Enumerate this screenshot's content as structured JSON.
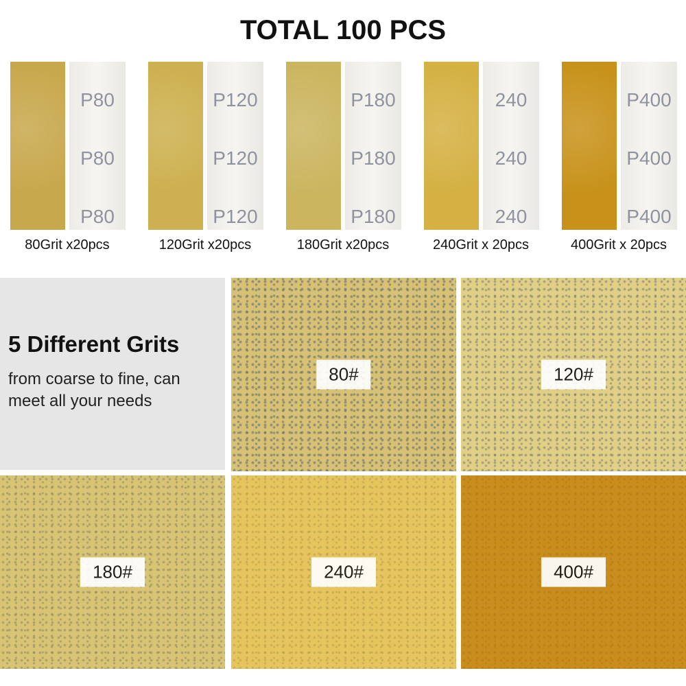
{
  "header": {
    "title": "TOTAL 100 PCS"
  },
  "sheets": [
    {
      "back_label": "P80",
      "caption": "80Grit x20pcs"
    },
    {
      "back_label": "P120",
      "caption": "120Grit x20pcs"
    },
    {
      "back_label": "P180",
      "caption": "180Grit x20pcs"
    },
    {
      "back_label": "240",
      "caption": "240Grit x 20pcs"
    },
    {
      "back_label": "P400",
      "caption": "400Grit x 20pcs"
    }
  ],
  "intro": {
    "heading": "5 Different Grits",
    "text": "from coarse to fine, can meet all your needs"
  },
  "tiles": [
    {
      "label": "80#"
    },
    {
      "label": "120#"
    },
    {
      "label": "180#"
    },
    {
      "label": "240#"
    },
    {
      "label": "400#"
    }
  ]
}
